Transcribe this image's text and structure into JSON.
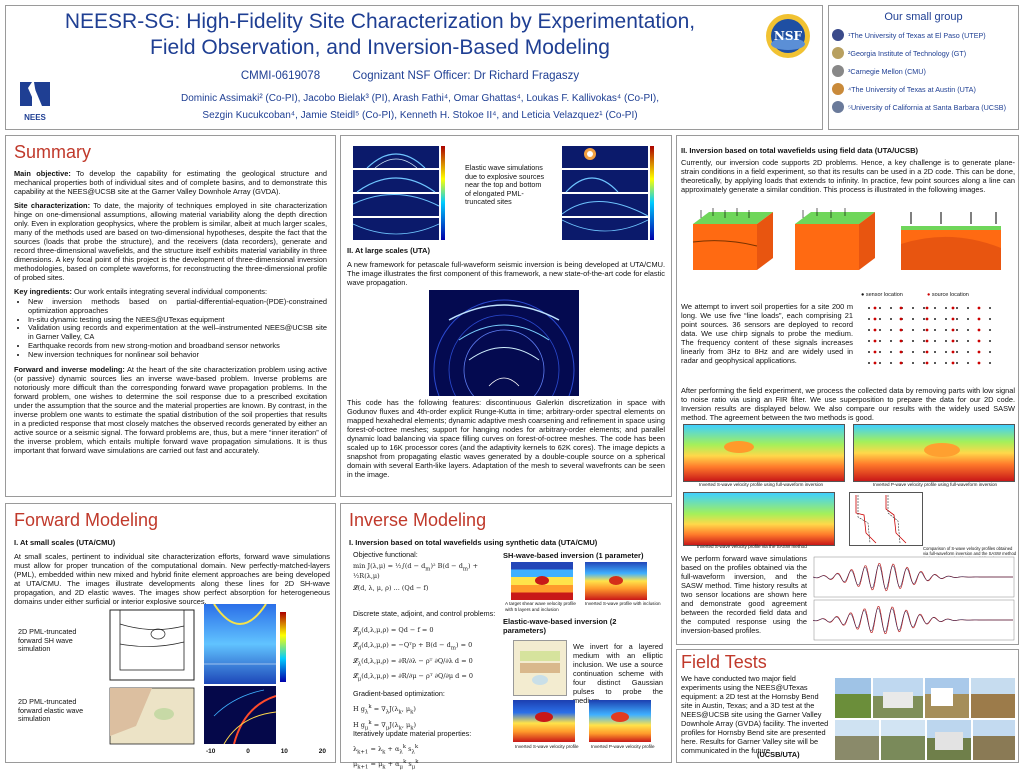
{
  "header": {
    "title_line1": "NEESR-SG: High-Fidelity Site Characterization by Experimentation,",
    "title_line2": "Field Observation, and Inversion-Based Modeling",
    "grant": "CMMI-0619078",
    "officer": "Cognizant NSF Officer: Dr Richard Fragaszy",
    "authors_line1": "Dominic Assimaki² (Co-PI), Jacobo Bielak³ (PI), Arash Fathi⁴, Omar Ghattas⁴, Loukas F. Kallivokas⁴ (Co-PI),",
    "authors_line2": "Sezgin Kucukcoban⁴, Jamie Steidl⁵ (Co-PI), Kenneth H.  Stokoe II⁴, and Leticia Velazquez¹ (Co-PI)",
    "nees_logo": "NEES",
    "nsf_logo": "NSF"
  },
  "group": {
    "title": "Our small group",
    "items": [
      {
        "icon": "utep-icon",
        "text": "¹The University of Texas at El Paso (UTEP)"
      },
      {
        "icon": "gt-icon",
        "text": "²Georgia Institute of Technology (GT)"
      },
      {
        "icon": "cmu-icon",
        "text": "³Carnegie Mellon (CMU)"
      },
      {
        "icon": "uta-icon",
        "text": "⁴The University of Texas at Austin (UTA)"
      },
      {
        "icon": "ucsb-icon",
        "text": "⁵University of California at Santa Barbara (UCSB)"
      }
    ]
  },
  "summary": {
    "title": "Summary",
    "main_label": "Main objective:",
    "main_text": " To develop the capability for estimating the geological structure and mechanical properties both of individual sites and of complete basins, and to demonstrate this capability at the NEES@UCSB site at the Garner Valley Downhole Array (GVDA).",
    "site_label": "Site characterization:",
    "site_text": " To date, the majority of techniques employed in site characterization hinge on one-dimensional assumptions, allowing material variability along the depth direction only. Even in exploration geophysics, where the problem is similar, albeit at much larger scales, many of the methods used are based on two-dimensional hypotheses, despite the fact that the sources (loads that probe the structure), and the receivers (data recorders), generate and record three-dimensional wavefields, and the structure itself exhibits material variability in three dimensions. A key focal point of this project is the development of three-dimensional inversion methodologies, based on complete waveforms, for reconstructing the three-dimensional profile of probed sites.",
    "key_label": "Key ingredients:",
    "key_text": " Our work entails integrating several individual components:",
    "bullets": [
      "New inversion methods based on partial-differential-equation-(PDE)-constrained optimization approaches",
      "In-situ dynamic testing using the NEES@UTexas equipment",
      "Validation using records and experimentation at the well–instrumented NEES@UCSB site in Garner Valley, CA",
      "Earthquake records from new strong-motion and broadband sensor networks",
      "New inversion techniques for nonlinear soil behavior"
    ],
    "fwd_label": "Forward and inverse modeling:",
    "fwd_text": " At the heart of the site characterization problem using active (or passive) dynamic sources lies an inverse wave-based problem. Inverse problems are notoriously more difficult than the corresponding forward wave propagation problems. In the forward problem, one wishes to determine the soil response due to a prescribed excitation under the assumption that the source and the material properties are known. By contrast, in the inverse problem one wants to estimate the spatial distribution of the soil properties that results in a predicted response that most closely matches the observed records generated by either an active source or a seismic signal. The forward problems are, thus, but a mere “inner iteration” of the inverse problem, which entails multiple forward wave propagation simulations. It is thus important that forward wave simulations are carried out fast and accurately."
  },
  "large_scale": {
    "caption": "Elastic wave simulations due to explosive sources near the top and bottom of elongated PML-truncated sites",
    "heading": "II. At large scales (UTA)",
    "intro": "A new framework for petascale full-waveform seismic inversion is being developed at UTA/CMU. The image illustrates the first component of this framework, a new state-of-the-art code for elastic wave propagation.",
    "body": "This code has the following features: discontinuous Galerkin discretization in space with Godunov fluxes and 4th-order explicit Runge-Kutta in time; arbitrary-order spectral elements on mapped hexahedral elements; dynamic adaptive mesh coarsening and refinement in space using forest-of-octree meshes; support for hanging nodes for arbitrary-order elements; and parallel dynamic load balancing via space filling curves on forest-of-octree meshes. The code has been scaled up to 16K processor cores (and the adaptivity kernels to 62K cores). The image depicts a snapshot from propagating elastic waves generated by a double-couple source on a spherical domain with several Earth-like layers. Adaptation of the mesh to several wavefronts can be seen in the image."
  },
  "forward": {
    "title": "Forward Modeling",
    "heading": "I. At small scales (UTA/CMU)",
    "text": "At small scales, pertinent to individual site characterization efforts, forward wave simulations must allow for proper truncation of the computational domain. New perfectly-matched-layers (PML), embedded within new mixed and hybrid finite element approaches are being developed at UTA/CMU. The images illustrate developments along these lines for 2D SH-wave propagation, and 2D elastic waves. The images show perfect absorption for heterogeneous domains under either surficial or interior explosive sources.",
    "label_sh": "2D PML-truncated forward SH wave simulation",
    "label_el": "2D PML-truncated forward elastic wave simulation",
    "axis_ticks": [
      "-10",
      "0",
      "10",
      "20"
    ]
  },
  "inverse": {
    "title": "Inverse Modeling",
    "heading": "I. Inversion based on total wavefields using synthetic data (UTA/CMU)",
    "objective": "Objective functional:",
    "sh_title": "SH-wave-based inversion (1 parameter)",
    "sh_cap1": "A target shear wave velocity profile with 5 layers and inclusion",
    "sh_cap2": "Inverted S-wave profile with inclusion",
    "state_label": "Discrete state, adjoint, and control problems:",
    "el_title": "Elastic-wave-based inversion (2 parameters)",
    "el_text": "We invert for a layered medium with an elliptic inclusion. We use a source continuation scheme with four distinct Gaussian pulses to probe the medium.",
    "grad_label": "Gradient-based optimization:",
    "iter_label": "Iteratively update material properties:",
    "el_cap1": "Inverted S-wave velocity profile",
    "el_cap2": "Inverted P-wave velocity profile"
  },
  "field_inv": {
    "heading": "II. Inversion based on total wavefields using field data (UTA/UCSB)",
    "intro": "Currently, our inversion code supports 2D problems. Hence, a key challenge is to generate plane-strain conditions in a field experiment, so that its results can be used in a 2D code. This can be done, theoretically, by applying loads that extends to infinity. In practice, few point sources along a line can approximately generate a similar condition. This process is illustrated in the following images.",
    "exp_text": "We attempt to invert soil properties for a site 200 m long. We use five “line loads”, each comprising 21 point sources. 36 sensors are deployed to record data. We use chirp signals to probe the medium. The frequency content of these signals increases linearly from 3Hz to 8Hz and are widely used in radar and geophysical applications.",
    "legend_sensor": "sensor location",
    "legend_source": "source location",
    "post_text": "After performing the field experiment, we process the collected data by removing parts with low signal to noise ratio via using an FIR filter. We use superposition to prepare the data for our 2D code. Inversion results are displayed below. We also compare our results with the widely used SASW method. The agreement between the two methods is good.",
    "cap_s": "Inverted S-wave velocity profile using full-waveform inversion",
    "cap_p": "Inverted P-wave velocity profile using full-waveform inversion",
    "cap_sasw": "Inverted S-wave velocity profile via the SASW method",
    "cap_compare": "Comparison of S-wave velocity profiles obtained via full-waveform inversion and the SASW method (at locations marked by the solid lines)",
    "compare_text": "We perform forward wave simulations based on the profiles obtained via the full-waveform inversion, and the SASW method. Time history results at two sensor locations are shown here and demonstrate good agreement between the recorded field data and the computed response using the inversion-based profiles."
  },
  "field_tests": {
    "title": "Field Tests",
    "text": "We have conducted two major field experiments using the NEES@UTexas equipment: a 2D test at the Hornsby Bend site in Austin, Texas; and a 3D test at the NEES@UCSB site using the Garner Valley Downhole Array (GVDA) facility. The inverted profiles for Hornsby Bend site are presented here. Results for Garner Valley site will be communicated in the future.",
    "tag": "(UCSB/UTA)"
  }
}
